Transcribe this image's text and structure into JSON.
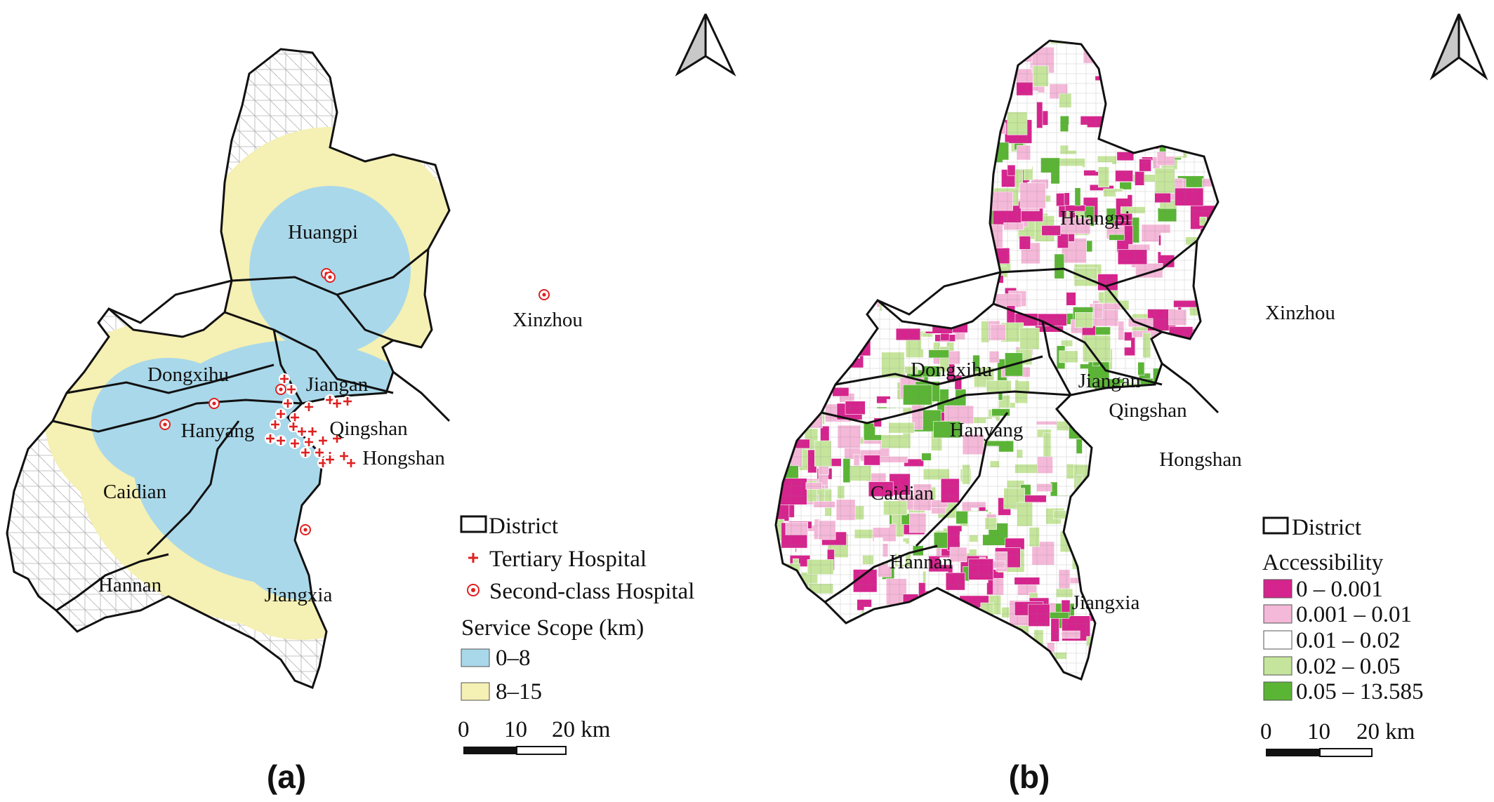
{
  "panel_a": {
    "label": "(a)",
    "districts": [
      {
        "id": "huangpi",
        "name": "Huangpi"
      },
      {
        "id": "xinzhou",
        "name": "Xinzhou"
      },
      {
        "id": "dongxihu",
        "name": "Dongxihu"
      },
      {
        "id": "jiangan",
        "name": "Jiangan"
      },
      {
        "id": "hanyang",
        "name": "Hanyang"
      },
      {
        "id": "qingshan",
        "name": "Qingshan"
      },
      {
        "id": "hongshan",
        "name": "Hongshan"
      },
      {
        "id": "caidian",
        "name": "Caidian"
      },
      {
        "id": "hannan",
        "name": "Hannan"
      },
      {
        "id": "jiangxia",
        "name": "Jiangxia"
      }
    ],
    "legend": {
      "district": "District",
      "tertiary": "Tertiary Hospital",
      "second_class": "Second-class Hospital",
      "service_title": "Service Scope (km)",
      "classes": [
        {
          "label": "0–8",
          "color": "#a9d8ea"
        },
        {
          "label": "8–15",
          "color": "#f5f0b3"
        }
      ]
    },
    "scalebar": {
      "t0": "0",
      "t1": "10",
      "t2": "20 km"
    }
  },
  "panel_b": {
    "label": "(b)",
    "districts": [
      {
        "id": "huangpi",
        "name": "Huangpi"
      },
      {
        "id": "xinzhou",
        "name": "Xinzhou"
      },
      {
        "id": "dongxihu",
        "name": "Dongxihu"
      },
      {
        "id": "jiangan",
        "name": "Jiangan"
      },
      {
        "id": "hanyang",
        "name": "Hanyang"
      },
      {
        "id": "qingshan",
        "name": "Qingshan"
      },
      {
        "id": "hongshan",
        "name": "Hongshan"
      },
      {
        "id": "caidian",
        "name": "Caidian"
      },
      {
        "id": "hannan",
        "name": "Hannan"
      },
      {
        "id": "jiangxia",
        "name": "Jiangxia"
      }
    ],
    "legend": {
      "district": "District",
      "title": "Accessibility",
      "classes": [
        {
          "label": "0 – 0.001",
          "color": "#d6248e"
        },
        {
          "label": "0.001 – 0.01",
          "color": "#f4b8d8"
        },
        {
          "label": "0.01 – 0.02",
          "color": "#ffffff"
        },
        {
          "label": "0.02 – 0.05",
          "color": "#c5e59c"
        },
        {
          "label": "0.05 – 13.585",
          "color": "#5bb535"
        }
      ]
    },
    "scalebar": {
      "t0": "0",
      "t1": "10",
      "t2": "20 km"
    }
  },
  "colors": {
    "boundary": "#111111",
    "hospital": "#e02020",
    "background_region": "#ffffff",
    "fine_line": "#9a9a9a"
  }
}
